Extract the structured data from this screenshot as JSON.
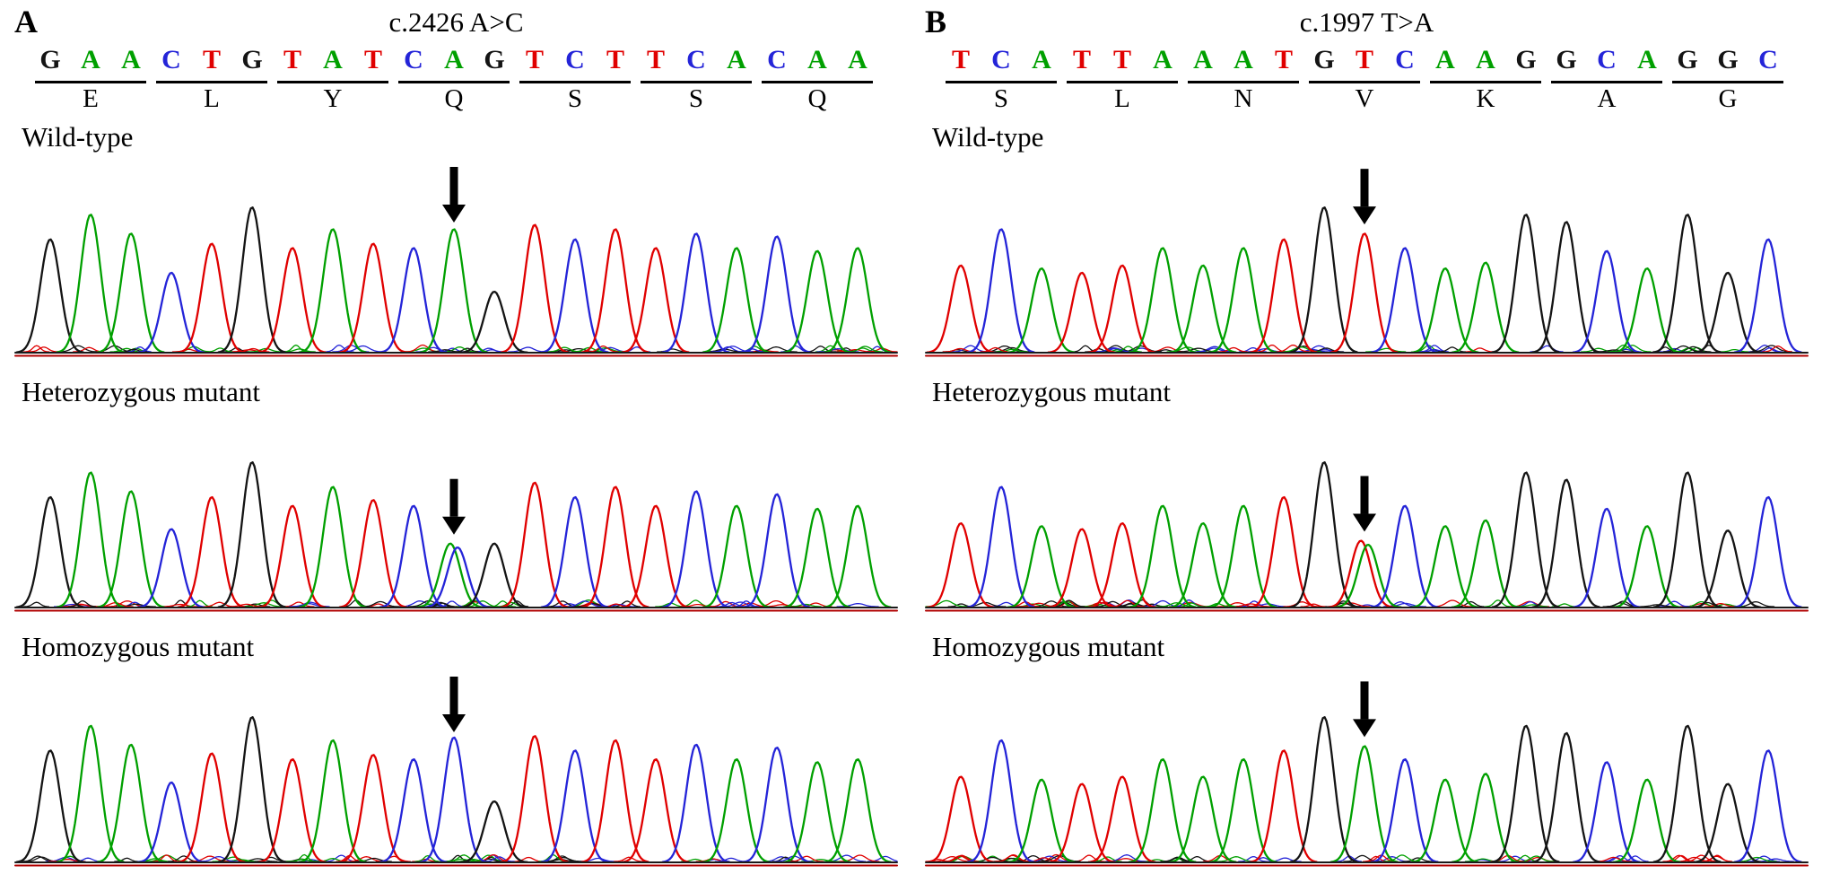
{
  "chart_data": [
    {
      "type": "line",
      "chart_kind": "sanger-sequencing-chromatogram",
      "panel_label": "A",
      "title": "c.2426 A>C",
      "legend_position": "none",
      "grid": false,
      "base_colors": {
        "A": "#00a000",
        "C": "#2424d8",
        "G": "#141414",
        "T": "#e00000"
      },
      "sequence": [
        "G",
        "A",
        "A",
        "C",
        "T",
        "G",
        "T",
        "A",
        "T",
        "C",
        "A",
        "G",
        "T",
        "C",
        "T",
        "T",
        "C",
        "A",
        "C",
        "A",
        "A"
      ],
      "codons": [
        {
          "amino_acid": "E",
          "start": 0,
          "end": 2
        },
        {
          "amino_acid": "L",
          "start": 3,
          "end": 5
        },
        {
          "amino_acid": "Y",
          "start": 6,
          "end": 8
        },
        {
          "amino_acid": "Q",
          "start": 9,
          "end": 11
        },
        {
          "amino_acid": "S",
          "start": 12,
          "end": 14
        },
        {
          "amino_acid": "S",
          "start": 15,
          "end": 17
        },
        {
          "amino_acid": "Q",
          "start": 18,
          "end": 20
        }
      ],
      "mutation_index": 10,
      "wild_base": "A",
      "mutant_base": "C",
      "traces": [
        {
          "label": "Wild-type",
          "genotype": "wild",
          "heights": [
            0.78,
            0.95,
            0.82,
            0.55,
            0.75,
            1.0,
            0.72,
            0.85,
            0.75,
            0.72,
            0.85,
            0.42,
            0.88,
            0.78,
            0.85,
            0.72,
            0.82,
            0.72,
            0.8,
            0.7,
            0.72
          ]
        },
        {
          "label": "Heterozygous mutant",
          "genotype": "het",
          "heights": [
            0.76,
            0.93,
            0.8,
            0.54,
            0.76,
            1.0,
            0.7,
            0.83,
            0.74,
            0.7,
            0.44,
            0.44,
            0.86,
            0.76,
            0.83,
            0.7,
            0.8,
            0.7,
            0.78,
            0.68,
            0.7
          ]
        },
        {
          "label": "Homozygous mutant",
          "genotype": "hom",
          "heights": [
            0.77,
            0.94,
            0.81,
            0.55,
            0.75,
            1.0,
            0.71,
            0.84,
            0.74,
            0.71,
            0.86,
            0.42,
            0.87,
            0.77,
            0.84,
            0.71,
            0.81,
            0.71,
            0.79,
            0.69,
            0.71
          ]
        }
      ]
    },
    {
      "type": "line",
      "chart_kind": "sanger-sequencing-chromatogram",
      "panel_label": "B",
      "title": "c.1997 T>A",
      "legend_position": "none",
      "grid": false,
      "base_colors": {
        "A": "#00a000",
        "C": "#2424d8",
        "G": "#141414",
        "T": "#e00000"
      },
      "sequence": [
        "T",
        "C",
        "A",
        "T",
        "T",
        "A",
        "A",
        "A",
        "T",
        "G",
        "T",
        "C",
        "A",
        "A",
        "G",
        "G",
        "C",
        "A",
        "G",
        "G",
        "C"
      ],
      "codons": [
        {
          "amino_acid": "S",
          "start": 0,
          "end": 2
        },
        {
          "amino_acid": "L",
          "start": 3,
          "end": 5
        },
        {
          "amino_acid": "N",
          "start": 6,
          "end": 8
        },
        {
          "amino_acid": "V",
          "start": 9,
          "end": 11
        },
        {
          "amino_acid": "K",
          "start": 12,
          "end": 14
        },
        {
          "amino_acid": "A",
          "start": 15,
          "end": 17
        },
        {
          "amino_acid": "G",
          "start": 18,
          "end": 20
        }
      ],
      "mutation_index": 10,
      "wild_base": "T",
      "mutant_base": "A",
      "traces": [
        {
          "label": "Wild-type",
          "genotype": "wild",
          "heights": [
            0.6,
            0.85,
            0.58,
            0.55,
            0.6,
            0.72,
            0.6,
            0.72,
            0.78,
            1.0,
            0.82,
            0.72,
            0.58,
            0.62,
            0.95,
            0.9,
            0.7,
            0.58,
            0.95,
            0.55,
            0.78
          ]
        },
        {
          "label": "Heterozygous mutant",
          "genotype": "het",
          "heights": [
            0.58,
            0.83,
            0.56,
            0.54,
            0.58,
            0.7,
            0.58,
            0.7,
            0.76,
            1.0,
            0.46,
            0.7,
            0.56,
            0.6,
            0.93,
            0.88,
            0.68,
            0.56,
            0.93,
            0.53,
            0.76
          ]
        },
        {
          "label": "Homozygous mutant",
          "genotype": "hom",
          "heights": [
            0.59,
            0.84,
            0.57,
            0.54,
            0.59,
            0.71,
            0.59,
            0.71,
            0.77,
            1.0,
            0.8,
            0.71,
            0.57,
            0.61,
            0.94,
            0.89,
            0.69,
            0.57,
            0.94,
            0.54,
            0.77
          ]
        }
      ]
    }
  ]
}
